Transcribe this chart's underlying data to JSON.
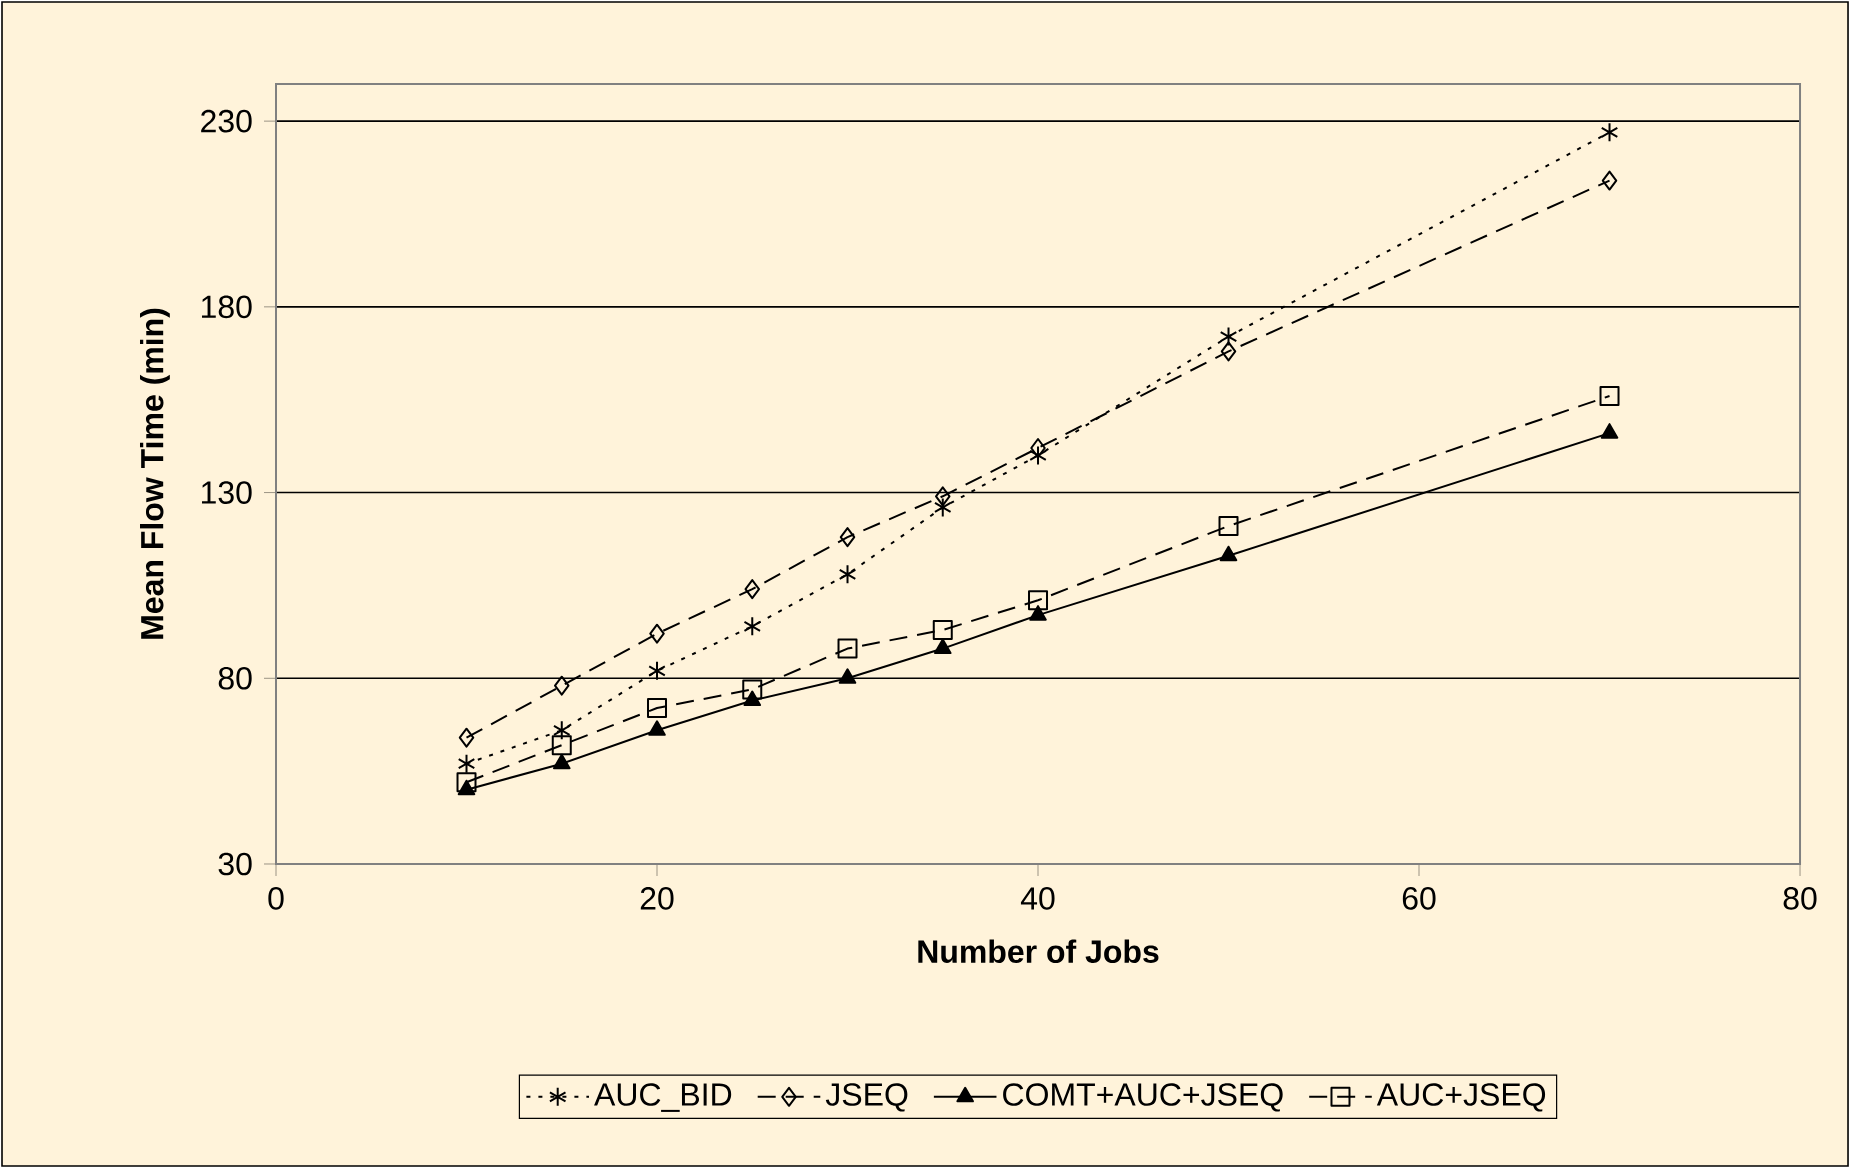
{
  "chart_data": {
    "type": "line",
    "xlabel": "Number of Jobs",
    "ylabel": "Mean Flow Time (min)",
    "x": [
      10,
      15,
      20,
      25,
      30,
      35,
      40,
      50,
      70
    ],
    "series": [
      {
        "name": "AUC_BID",
        "color": "#000000",
        "marker": "cross",
        "line_style": "dotted",
        "values": [
          57,
          66,
          82,
          94,
          108,
          126,
          140,
          172,
          227
        ]
      },
      {
        "name": "JSEQ",
        "color": "#000000",
        "marker": "diamond",
        "line_style": "dashed",
        "values": [
          64,
          78,
          92,
          104,
          118,
          129,
          142,
          168,
          214
        ]
      },
      {
        "name": "COMT+AUC+JSEQ",
        "color": "#000000",
        "marker": "triangle",
        "line_style": "solid",
        "values": [
          50,
          57,
          66,
          74,
          80,
          88,
          97,
          113,
          146
        ]
      },
      {
        "name": "AUC+JSEQ",
        "color": "#000000",
        "marker": "square",
        "line_style": "dashed",
        "values": [
          52,
          62,
          72,
          77,
          88,
          93,
          101,
          121,
          156
        ]
      }
    ],
    "xlim": [
      0,
      80
    ],
    "xticks": [
      0,
      20,
      40,
      60,
      80
    ],
    "ylim": [
      30,
      240
    ],
    "yticks": [
      30,
      80,
      130,
      180,
      230
    ],
    "grid": "y",
    "legend": "bottom"
  }
}
